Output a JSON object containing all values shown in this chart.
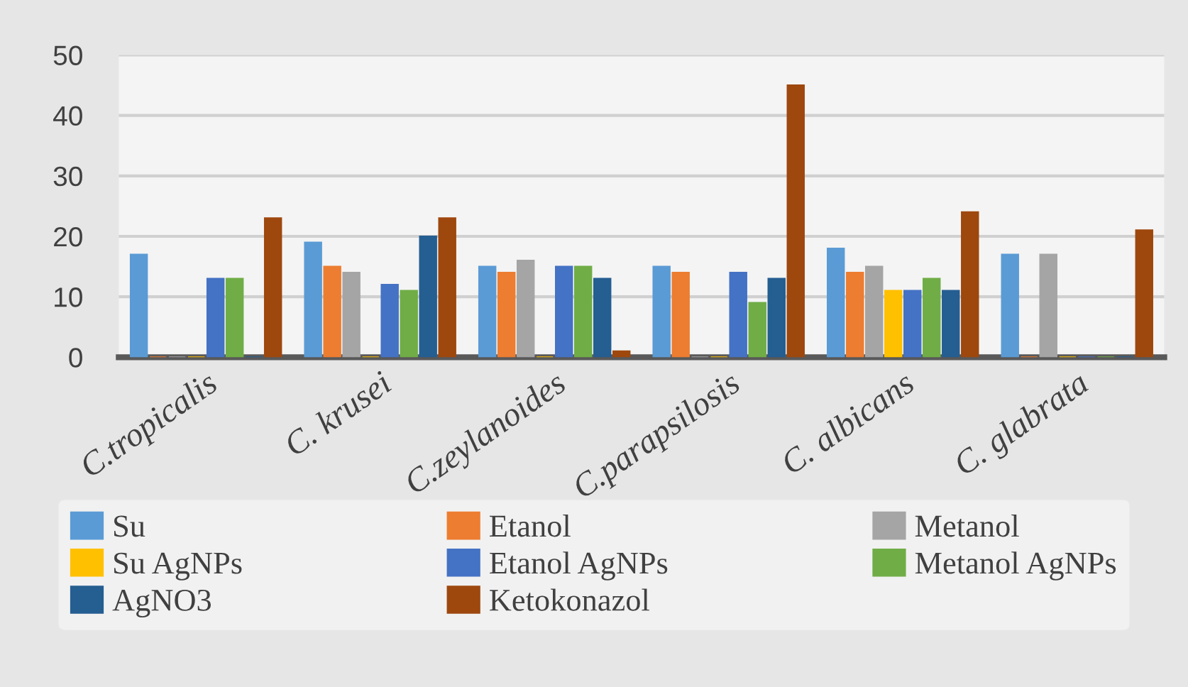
{
  "chart_data": {
    "type": "bar",
    "categories": [
      "C.tropicalis",
      "C. krusei",
      "C.zeylanoides",
      "C.parapsilosis",
      "C. albicans",
      "C. glabrata"
    ],
    "series": [
      {
        "name": "Su",
        "color": "#5b9bd5",
        "values": [
          17,
          19,
          15,
          15,
          18,
          17
        ]
      },
      {
        "name": "Etanol",
        "color": "#ed7d31",
        "values": [
          0,
          15,
          14,
          14,
          14,
          0
        ]
      },
      {
        "name": "Metanol",
        "color": "#a5a5a5",
        "values": [
          0,
          14,
          16,
          0,
          15,
          17
        ]
      },
      {
        "name": "Su AgNPs",
        "color": "#ffc000",
        "values": [
          0,
          0,
          0,
          0,
          11,
          0
        ]
      },
      {
        "name": "Etanol AgNPs",
        "color": "#4472c4",
        "values": [
          13,
          12,
          15,
          14,
          11,
          0
        ]
      },
      {
        "name": "Metanol AgNPs",
        "color": "#70ad47",
        "values": [
          13,
          11,
          15,
          9,
          13,
          0
        ]
      },
      {
        "name": "AgNO3",
        "color": "#255e91",
        "values": [
          0,
          20,
          13,
          13,
          11,
          0
        ]
      },
      {
        "name": "Ketokonazol",
        "color": "#9e480e",
        "values": [
          23,
          23,
          1,
          45,
          24,
          21
        ]
      }
    ],
    "ylim": [
      0,
      50
    ],
    "yticks": [
      0,
      10,
      20,
      30,
      40,
      50
    ],
    "grid": "y",
    "legend": "bottom"
  }
}
